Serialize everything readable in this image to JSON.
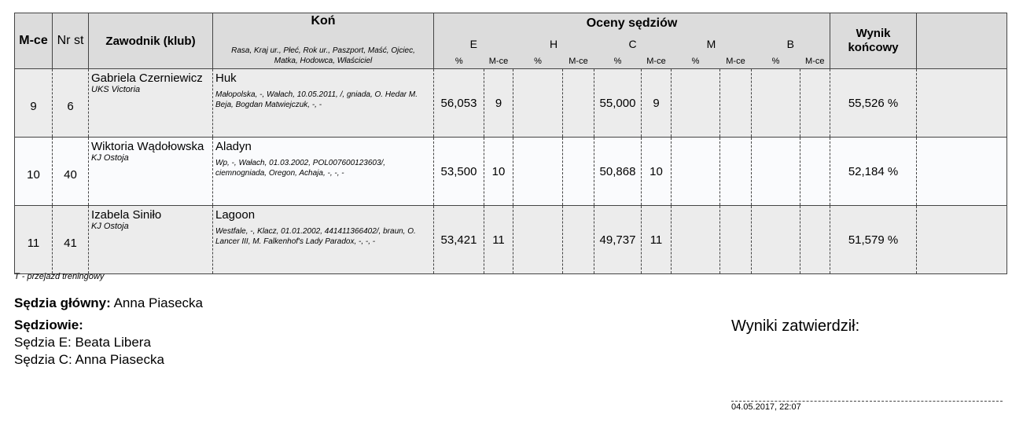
{
  "header": {
    "place": "M-ce",
    "start_no": "Nr st",
    "rider": "Zawodnik (klub)",
    "horse": "Koń",
    "horse_sub": "Rasa, Kraj ur., Płeć, Rok ur., Paszport, Maść, Ojciec, Matka, Hodowca, Właściciel",
    "judges": "Oceny sędziów",
    "judge_letters": [
      "E",
      "H",
      "C",
      "M",
      "B"
    ],
    "pct": "%",
    "mce": "M-ce",
    "final": "Wynik końcowy"
  },
  "rows": [
    {
      "place": "9",
      "start_no": "6",
      "rider": "Gabriela Czerniewicz",
      "club": "UKS Victoria",
      "horse": "Huk",
      "horse_details": "Małopolska, -, Wałach, 10.05.2011, /, gniada, O. Hedar M. Beja, Bogdan Matwiejczuk, -, -",
      "scores": [
        [
          "56,053",
          "9"
        ],
        [
          "",
          ""
        ],
        [
          "55,000",
          "9"
        ],
        [
          "",
          ""
        ],
        [
          "",
          ""
        ]
      ],
      "final": "55,526 %"
    },
    {
      "place": "10",
      "start_no": "40",
      "rider": "Wiktoria Wądołowska",
      "club": "KJ Ostoja",
      "horse": "Aladyn",
      "horse_details": "Wp, -, Wałach, 01.03.2002, POL007600123603/, ciemnogniada, Oregon, Achaja, -, -, -",
      "scores": [
        [
          "53,500",
          "10"
        ],
        [
          "",
          ""
        ],
        [
          "50,868",
          "10"
        ],
        [
          "",
          ""
        ],
        [
          "",
          ""
        ]
      ],
      "final": "52,184 %"
    },
    {
      "place": "11",
      "start_no": "41",
      "rider": "Izabela Siniło",
      "club": "KJ Ostoja",
      "horse": "Lagoon",
      "horse_details": "Westfale, -, Klacz, 01.01.2002, 441411366402/, braun, O. Lancer III, M. Falkenhof's Lady Paradox, -, -, -",
      "scores": [
        [
          "53,421",
          "11"
        ],
        [
          "",
          ""
        ],
        [
          "49,737",
          "11"
        ],
        [
          "",
          ""
        ],
        [
          "",
          ""
        ]
      ],
      "final": "51,579 %"
    }
  ],
  "footer": {
    "note": "T - przejazd treningowy",
    "chief_label": "Sędzia główny:",
    "chief": "Anna Piasecka",
    "judges_label": "Sędziowie:",
    "judges": [
      "Sędzia E: Beata Libera",
      "Sędzia C: Anna Piasecka"
    ],
    "approved": "Wyniki zatwierdził:",
    "date": "04.05.2017, 22:07"
  }
}
